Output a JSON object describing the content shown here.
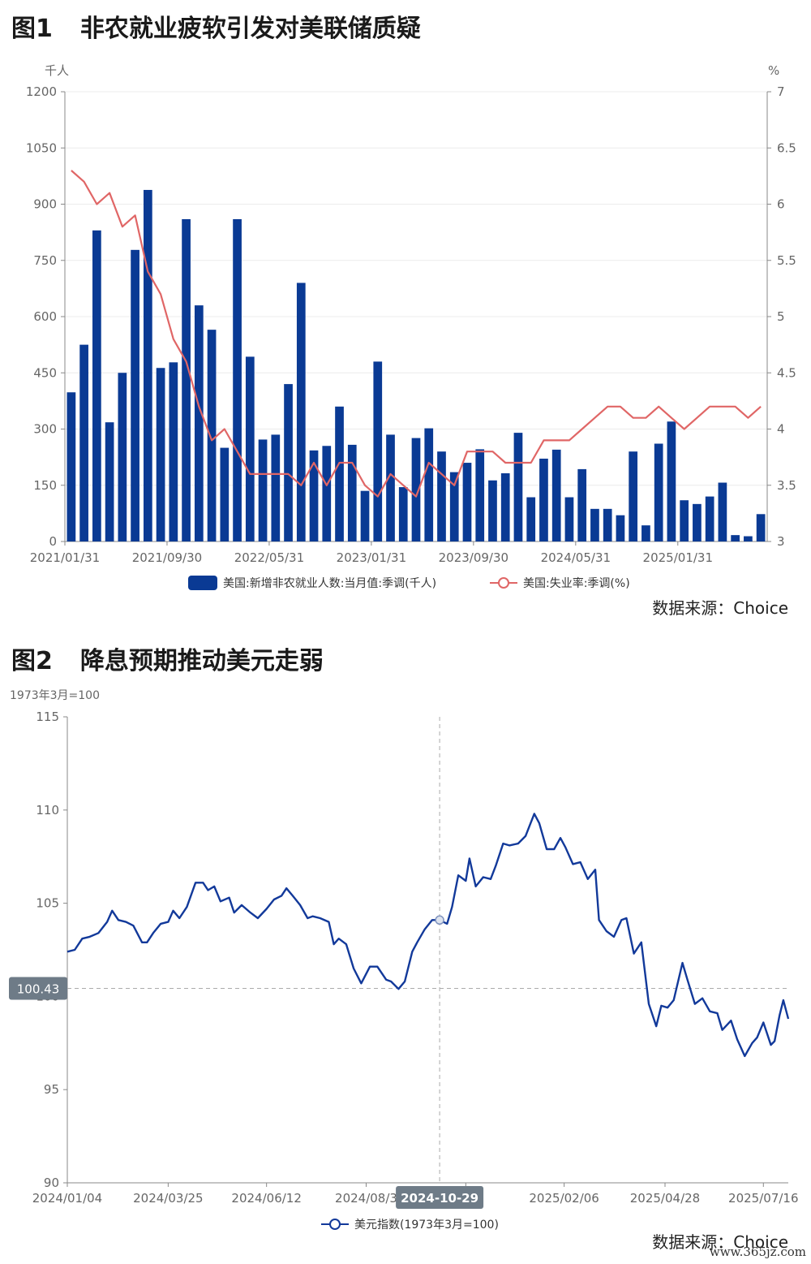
{
  "figures": [
    {
      "number": "图1",
      "title": "非农就业疲软引发对美联储质疑",
      "source": "数据来源：Choice"
    },
    {
      "number": "图2",
      "title": "降息预期推动美元走弱",
      "source": "数据来源：Choice"
    }
  ],
  "watermark": "www.365jz.com",
  "chart_data": [
    {
      "type": "bar",
      "left_unit": "千人",
      "right_unit": "%",
      "left_ylim": [
        0,
        1200
      ],
      "left_ticks": [
        "0",
        "150",
        "300",
        "450",
        "600",
        "750",
        "900",
        "1050",
        "1200"
      ],
      "right_ylim": [
        3,
        7
      ],
      "right_ticks": [
        "3",
        "3.5",
        "4",
        "4.5",
        "5",
        "5.5",
        "6",
        "6.5",
        "7"
      ],
      "x_tick_labels": [
        "2021/01/31",
        "2021/09/30",
        "2022/05/31",
        "2023/01/31",
        "2023/09/30",
        "2024/05/31",
        "2025/01/31"
      ],
      "x_tick_every": 8,
      "legend_position": "bottom-center",
      "colors": {
        "bar": "#0a3a94",
        "line": "#e06666"
      },
      "series": [
        {
          "name": "美国:新增非农就业人数:当月值:季调(千人)",
          "type": "bar",
          "axis": "left",
          "values": [
            398,
            525,
            830,
            318,
            450,
            778,
            938,
            463,
            478,
            860,
            630,
            565,
            250,
            860,
            493,
            272,
            285,
            420,
            690,
            243,
            255,
            360,
            258,
            135,
            480,
            285,
            145,
            276,
            302,
            240,
            185,
            210,
            246,
            163,
            182,
            290,
            118,
            221,
            245,
            118,
            193,
            87,
            87,
            70,
            240,
            43,
            261,
            320,
            110,
            100,
            120,
            157,
            17,
            14,
            73
          ]
        },
        {
          "name": "美国:失业率:季调(%)",
          "type": "line",
          "axis": "right",
          "values": [
            6.3,
            6.2,
            6.0,
            6.1,
            5.8,
            5.9,
            5.4,
            5.2,
            4.8,
            4.6,
            4.2,
            3.9,
            4.0,
            3.8,
            3.6,
            3.6,
            3.6,
            3.6,
            3.5,
            3.7,
            3.5,
            3.7,
            3.7,
            3.5,
            3.4,
            3.6,
            3.5,
            3.4,
            3.7,
            3.6,
            3.5,
            3.8,
            3.8,
            3.8,
            3.7,
            3.7,
            3.7,
            3.9,
            3.9,
            3.9,
            4.0,
            4.1,
            4.2,
            4.2,
            4.1,
            4.1,
            4.2,
            4.1,
            4.0,
            4.1,
            4.2,
            4.2,
            4.2,
            4.1,
            4.2
          ]
        }
      ]
    },
    {
      "type": "line",
      "unit_label": "1973年3月=100",
      "ylim": [
        90,
        115
      ],
      "y_ticks": [
        "90",
        "95",
        "100",
        "105",
        "110",
        "115"
      ],
      "x_range": [
        "2024-01-04",
        "2025-08-05"
      ],
      "x_tick_labels": [
        {
          "label": "2024/01/04",
          "date": "2024-01-04"
        },
        {
          "label": "2024/03/25",
          "date": "2024-03-25"
        },
        {
          "label": "2024/06/12",
          "date": "2024-06-12"
        },
        {
          "label": "2024/08/3",
          "date": "2024-08-31"
        },
        {
          "label": "/19",
          "date": "2024-11-19"
        },
        {
          "label": "2025/02/06",
          "date": "2025-02-06"
        },
        {
          "label": "2025/04/28",
          "date": "2025-04-28"
        },
        {
          "label": "2025/07/16",
          "date": "2025-07-16"
        }
      ],
      "crosshair": {
        "x_label": "2024-10-29",
        "x_date": "2024-10-29",
        "y_label": "100.43",
        "y": 100.43
      },
      "legend_position": "bottom-center",
      "colors": {
        "line": "#12399a"
      },
      "series": [
        {
          "name": "美元指数(1973年3月=100)",
          "points": [
            [
              "2024-01-04",
              102.4
            ],
            [
              "2024-01-10",
              102.5
            ],
            [
              "2024-01-16",
              103.1
            ],
            [
              "2024-01-22",
              103.2
            ],
            [
              "2024-01-29",
              103.4
            ],
            [
              "2024-02-05",
              104.0
            ],
            [
              "2024-02-09",
              104.6
            ],
            [
              "2024-02-14",
              104.1
            ],
            [
              "2024-02-20",
              104.0
            ],
            [
              "2024-02-26",
              103.8
            ],
            [
              "2024-03-04",
              102.9
            ],
            [
              "2024-03-08",
              102.9
            ],
            [
              "2024-03-13",
              103.4
            ],
            [
              "2024-03-19",
              103.9
            ],
            [
              "2024-03-25",
              104.0
            ],
            [
              "2024-03-29",
              104.6
            ],
            [
              "2024-04-03",
              104.2
            ],
            [
              "2024-04-09",
              104.8
            ],
            [
              "2024-04-16",
              106.1
            ],
            [
              "2024-04-22",
              106.1
            ],
            [
              "2024-04-26",
              105.7
            ],
            [
              "2024-05-01",
              105.9
            ],
            [
              "2024-05-06",
              105.1
            ],
            [
              "2024-05-13",
              105.3
            ],
            [
              "2024-05-17",
              104.5
            ],
            [
              "2024-05-23",
              104.9
            ],
            [
              "2024-05-30",
              104.5
            ],
            [
              "2024-06-05",
              104.2
            ],
            [
              "2024-06-12",
              104.7
            ],
            [
              "2024-06-18",
              105.2
            ],
            [
              "2024-06-24",
              105.4
            ],
            [
              "2024-06-28",
              105.8
            ],
            [
              "2024-07-03",
              105.4
            ],
            [
              "2024-07-09",
              104.9
            ],
            [
              "2024-07-15",
              104.2
            ],
            [
              "2024-07-19",
              104.3
            ],
            [
              "2024-07-25",
              104.2
            ],
            [
              "2024-08-01",
              104.0
            ],
            [
              "2024-08-05",
              102.8
            ],
            [
              "2024-08-09",
              103.1
            ],
            [
              "2024-08-15",
              102.8
            ],
            [
              "2024-08-21",
              101.5
            ],
            [
              "2024-08-27",
              100.7
            ],
            [
              "2024-09-03",
              101.6
            ],
            [
              "2024-09-09",
              101.6
            ],
            [
              "2024-09-16",
              100.9
            ],
            [
              "2024-09-20",
              100.8
            ],
            [
              "2024-09-26",
              100.4
            ],
            [
              "2024-10-01",
              100.8
            ],
            [
              "2024-10-07",
              102.4
            ],
            [
              "2024-10-11",
              102.9
            ],
            [
              "2024-10-17",
              103.6
            ],
            [
              "2024-10-23",
              104.1
            ],
            [
              "2024-10-29",
              104.1
            ],
            [
              "2024-11-04",
              103.9
            ],
            [
              "2024-11-08",
              104.8
            ],
            [
              "2024-11-13",
              106.5
            ],
            [
              "2024-11-19",
              106.2
            ],
            [
              "2024-11-22",
              107.4
            ],
            [
              "2024-11-27",
              105.9
            ],
            [
              "2024-12-03",
              106.4
            ],
            [
              "2024-12-09",
              106.3
            ],
            [
              "2024-12-13",
              107.0
            ],
            [
              "2024-12-19",
              108.2
            ],
            [
              "2024-12-24",
              108.1
            ],
            [
              "2024-12-31",
              108.2
            ],
            [
              "2025-01-06",
              108.6
            ],
            [
              "2025-01-13",
              109.8
            ],
            [
              "2025-01-17",
              109.3
            ],
            [
              "2025-01-23",
              107.9
            ],
            [
              "2025-01-29",
              107.9
            ],
            [
              "2025-02-03",
              108.5
            ],
            [
              "2025-02-07",
              108.0
            ],
            [
              "2025-02-13",
              107.1
            ],
            [
              "2025-02-19",
              107.2
            ],
            [
              "2025-02-25",
              106.3
            ],
            [
              "2025-03-03",
              106.8
            ],
            [
              "2025-03-06",
              104.1
            ],
            [
              "2025-03-12",
              103.5
            ],
            [
              "2025-03-18",
              103.2
            ],
            [
              "2025-03-24",
              104.1
            ],
            [
              "2025-03-28",
              104.2
            ],
            [
              "2025-04-03",
              102.3
            ],
            [
              "2025-04-09",
              102.9
            ],
            [
              "2025-04-15",
              99.6
            ],
            [
              "2025-04-21",
              98.4
            ],
            [
              "2025-04-25",
              99.5
            ],
            [
              "2025-04-30",
              99.4
            ],
            [
              "2025-05-05",
              99.8
            ],
            [
              "2025-05-12",
              101.8
            ],
            [
              "2025-05-16",
              100.9
            ],
            [
              "2025-05-22",
              99.6
            ],
            [
              "2025-05-28",
              99.9
            ],
            [
              "2025-06-03",
              99.2
            ],
            [
              "2025-06-09",
              99.1
            ],
            [
              "2025-06-13",
              98.2
            ],
            [
              "2025-06-20",
              98.7
            ],
            [
              "2025-06-25",
              97.7
            ],
            [
              "2025-07-01",
              96.8
            ],
            [
              "2025-07-07",
              97.5
            ],
            [
              "2025-07-11",
              97.8
            ],
            [
              "2025-07-16",
              98.6
            ],
            [
              "2025-07-22",
              97.4
            ],
            [
              "2025-07-25",
              97.6
            ],
            [
              "2025-07-29",
              99.0
            ],
            [
              "2025-08-01",
              99.8
            ],
            [
              "2025-08-05",
              98.8
            ]
          ]
        }
      ]
    }
  ]
}
